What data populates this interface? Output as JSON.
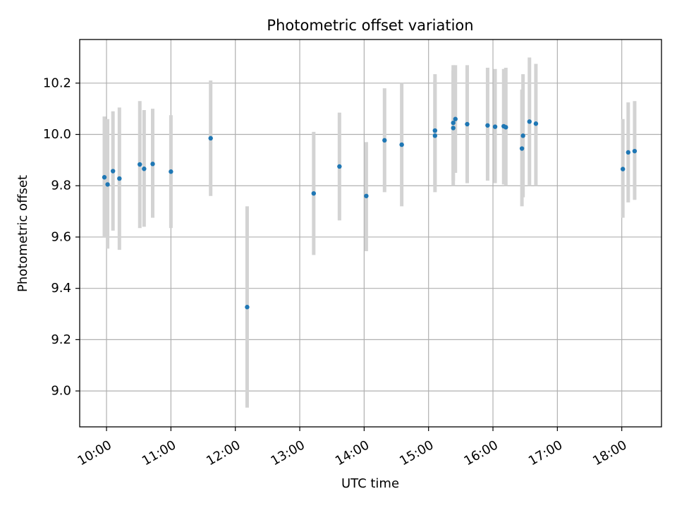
{
  "chart_data": {
    "type": "scatter",
    "title": "Photometric offset variation",
    "xlabel": "UTC time",
    "ylabel": "Photometric offset",
    "xlim": [
      "09:35",
      "18:37"
    ],
    "ylim": [
      8.86,
      10.37
    ],
    "x_ticks": [
      "10:00",
      "11:00",
      "12:00",
      "13:00",
      "14:00",
      "15:00",
      "16:00",
      "17:00",
      "18:00"
    ],
    "y_ticks": [
      "9.0",
      "9.2",
      "9.4",
      "9.6",
      "9.8",
      "10.0",
      "10.2"
    ],
    "grid": true,
    "colors": {
      "point": "#1f77b4",
      "errorbar": "#d3d3d3",
      "grid": "#b0b0b0",
      "axes": "#000000"
    },
    "points": [
      {
        "time": "09:58",
        "y": 9.833,
        "err_low": 9.6,
        "err_high": 10.07
      },
      {
        "time": "10:01",
        "y": 9.805,
        "err_low": 9.555,
        "err_high": 10.06
      },
      {
        "time": "10:06",
        "y": 9.857,
        "err_low": 9.625,
        "err_high": 10.09
      },
      {
        "time": "10:12",
        "y": 9.828,
        "err_low": 9.55,
        "err_high": 10.105
      },
      {
        "time": "10:31",
        "y": 9.883,
        "err_low": 9.635,
        "err_high": 10.13
      },
      {
        "time": "10:35",
        "y": 9.866,
        "err_low": 9.64,
        "err_high": 10.095
      },
      {
        "time": "10:43",
        "y": 9.885,
        "err_low": 9.675,
        "err_high": 10.1
      },
      {
        "time": "11:00",
        "y": 9.855,
        "err_low": 9.635,
        "err_high": 10.075
      },
      {
        "time": "11:37",
        "y": 9.985,
        "err_low": 9.76,
        "err_high": 10.21
      },
      {
        "time": "12:11",
        "y": 9.327,
        "err_low": 8.935,
        "err_high": 9.72
      },
      {
        "time": "13:13",
        "y": 9.77,
        "err_low": 9.53,
        "err_high": 10.01
      },
      {
        "time": "13:37",
        "y": 9.875,
        "err_low": 9.665,
        "err_high": 10.085
      },
      {
        "time": "14:02",
        "y": 9.76,
        "err_low": 9.545,
        "err_high": 9.97
      },
      {
        "time": "14:19",
        "y": 9.977,
        "err_low": 9.775,
        "err_high": 10.18
      },
      {
        "time": "14:35",
        "y": 9.96,
        "err_low": 9.72,
        "err_high": 10.2
      },
      {
        "time": "15:06",
        "y": 10.015,
        "err_low": 9.8,
        "err_high": 10.235
      },
      {
        "time": "15:06",
        "y": 9.995,
        "err_low": 9.775,
        "err_high": 10.21
      },
      {
        "time": "15:23",
        "y": 10.045,
        "err_low": 9.82,
        "err_high": 10.27
      },
      {
        "time": "15:23",
        "y": 10.025,
        "err_low": 9.8,
        "err_high": 10.25
      },
      {
        "time": "15:25",
        "y": 10.06,
        "err_low": 9.85,
        "err_high": 10.27
      },
      {
        "time": "15:36",
        "y": 10.04,
        "err_low": 9.81,
        "err_high": 10.27
      },
      {
        "time": "15:55",
        "y": 10.035,
        "err_low": 9.82,
        "err_high": 10.26
      },
      {
        "time": "16:02",
        "y": 10.03,
        "err_low": 9.81,
        "err_high": 10.255
      },
      {
        "time": "16:10",
        "y": 10.032,
        "err_low": 9.805,
        "err_high": 10.255
      },
      {
        "time": "16:12",
        "y": 10.028,
        "err_low": 9.8,
        "err_high": 10.26
      },
      {
        "time": "16:27",
        "y": 9.945,
        "err_low": 9.72,
        "err_high": 10.175
      },
      {
        "time": "16:28",
        "y": 9.995,
        "err_low": 9.755,
        "err_high": 10.235
      },
      {
        "time": "16:34",
        "y": 10.05,
        "err_low": 9.8,
        "err_high": 10.3
      },
      {
        "time": "16:40",
        "y": 10.042,
        "err_low": 9.8,
        "err_high": 10.275
      },
      {
        "time": "18:01",
        "y": 9.865,
        "err_low": 9.675,
        "err_high": 10.06
      },
      {
        "time": "18:06",
        "y": 9.93,
        "err_low": 9.735,
        "err_high": 10.125
      },
      {
        "time": "18:12",
        "y": 9.935,
        "err_low": 9.745,
        "err_high": 10.13
      }
    ]
  }
}
